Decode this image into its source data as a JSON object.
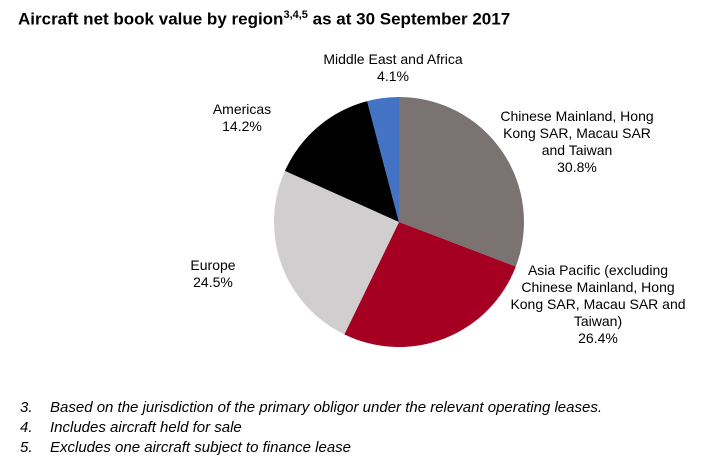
{
  "chart_data": {
    "type": "pie",
    "title": "Aircraft net book value by region",
    "title_superscript": "3,4,5",
    "title_suffix": "as at 30 September 2017",
    "categories": [
      "Chinese Mainland, Hong Kong SAR, Macau SAR and Taiwan",
      "Asia Pacific (excluding Chinese Mainland, Hong Kong SAR, Macau SAR and Taiwan)",
      "Europe",
      "Americas",
      "Middle East and Africa"
    ],
    "values": [
      30.8,
      26.4,
      24.5,
      14.2,
      4.1
    ],
    "value_labels": [
      "30.8%",
      "26.4%",
      "24.5%",
      "14.2%",
      "4.1%"
    ],
    "colors": [
      "#7a7372",
      "#a50021",
      "#d0cece",
      "#000000",
      "#4472c4"
    ]
  },
  "footnotes": [
    {
      "number": "3.",
      "text": "Based on the jurisdiction of the primary obligor under the relevant operating leases."
    },
    {
      "number": "4.",
      "text": "Includes aircraft held for sale"
    },
    {
      "number": "5.",
      "text": "Excludes one aircraft subject to finance lease"
    }
  ]
}
